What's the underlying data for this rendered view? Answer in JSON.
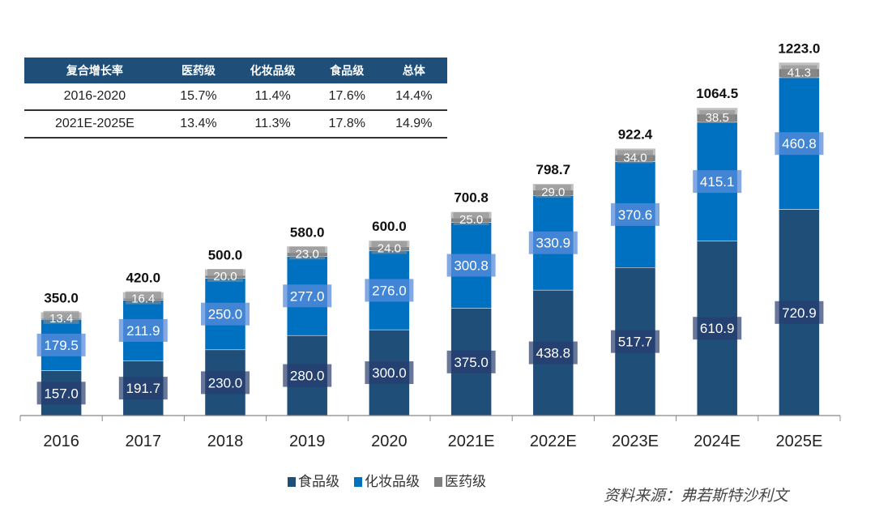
{
  "table": {
    "headers": [
      "复合增长率",
      "医药级",
      "化妆品级",
      "食品级",
      "总体"
    ],
    "rows": [
      [
        "2016-2020",
        "15.7%",
        "11.4%",
        "17.6%",
        "14.4%"
      ],
      [
        "2021E-2025E",
        "13.4%",
        "11.3%",
        "17.8%",
        "14.9%"
      ]
    ]
  },
  "chart_data": {
    "type": "bar",
    "stacked": true,
    "categories": [
      "2016",
      "2017",
      "2018",
      "2019",
      "2020",
      "2021E",
      "2022E",
      "2023E",
      "2024E",
      "2025E"
    ],
    "series": [
      {
        "name": "食品级",
        "color": "#1f4e79",
        "values": [
          157.0,
          191.7,
          230.0,
          280.0,
          300.0,
          375.0,
          438.8,
          517.7,
          610.9,
          720.9
        ]
      },
      {
        "name": "化妆品级",
        "color": "#0070c0",
        "values": [
          179.5,
          211.9,
          250.0,
          277.0,
          276.0,
          300.8,
          330.9,
          370.6,
          415.1,
          460.8
        ]
      },
      {
        "name": "医药级",
        "color": "#808080",
        "values": [
          13.4,
          16.4,
          20.0,
          23.0,
          24.0,
          25.0,
          29.0,
          34.0,
          38.5,
          41.3
        ]
      }
    ],
    "totals": [
      "350.0",
      "420.0",
      "500.0",
      "580.0",
      "600.0",
      "700.8",
      "798.7",
      "922.4",
      "1064.5",
      "1223.0"
    ],
    "ylim": [
      0,
      1350
    ],
    "grid": false,
    "legend": "bottom"
  },
  "legend": {
    "items": [
      "食品级",
      "化妆品级",
      "医药级"
    ]
  },
  "source": "资料来源：弗若斯特沙利文"
}
